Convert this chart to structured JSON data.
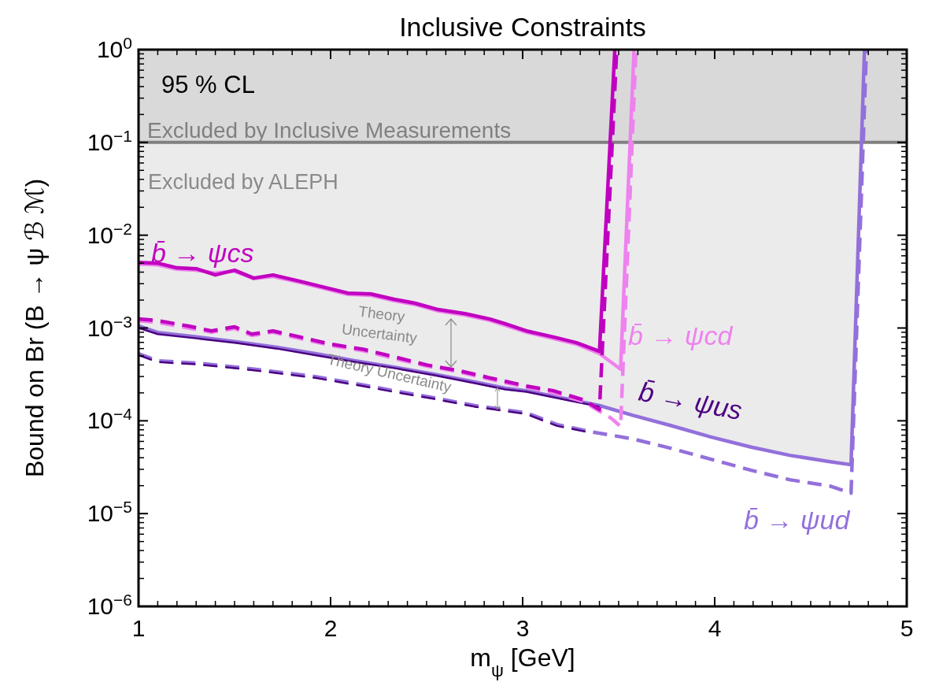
{
  "chart_data": {
    "type": "line",
    "title": "Inclusive Constraints",
    "xlabel": "m$_{ψ}$ [GeV]",
    "ylabel": "Bound on Br (B → ψ ℬ ℳ)",
    "log": "y",
    "xlim": [
      1,
      5
    ],
    "xticks": [
      1,
      2,
      3,
      4,
      5
    ],
    "ylim": [
      1e-06,
      1
    ],
    "yticks": [
      {
        "value": 1e-06,
        "label": "10$^{−6}$"
      },
      {
        "value": 1e-05,
        "label": "10$^{−5}$"
      },
      {
        "value": 0.0001,
        "label": "10$^{−4}$"
      },
      {
        "value": 0.001,
        "label": "10$^{−3}$"
      },
      {
        "value": 0.01,
        "label": "10$^{−2}$"
      },
      {
        "value": 0.1,
        "label": "10$^{−1}$"
      },
      {
        "value": 1,
        "label": "10$^{0}$"
      }
    ],
    "bands": [
      {
        "axis": "y",
        "from": 0.1,
        "to": 1,
        "color": "#d9d9d9"
      }
    ],
    "ref_lines": [
      {
        "axis": "y",
        "value": 0.1,
        "label": "Excluded by Inclusive Measurements",
        "color": "#808080"
      }
    ],
    "annotations": [
      "95 % CL",
      "Excluded by ALEPH",
      "Theory Uncertainty",
      "Theory Uncertainty"
    ],
    "series": [
      {
        "name": "b̄ → ψud",
        "color": "#9370db",
        "line_style": "solid",
        "x": [
          1,
          1.1,
          1.31,
          1.51,
          1.72,
          1.92,
          2.13,
          2.33,
          2.54,
          2.75,
          2.91,
          3.02,
          3.4,
          3.57,
          3.77,
          3.98,
          4.19,
          4.39,
          4.6,
          4.71,
          4.78
        ],
        "values": [
          0.00105,
          0.000896,
          0.0008,
          0.00071,
          0.00062,
          0.00053,
          0.000443,
          0.000379,
          0.000318,
          0.000262,
          0.000224,
          0.000211,
          0.000146,
          0.000115,
          8.9e-05,
          6.7e-05,
          5.2e-05,
          4.25e-05,
          3.63e-05,
          3.36e-05,
          1
        ]
      },
      {
        "color": "#9370db",
        "line_style": "dashed",
        "x": [
          1,
          1.1,
          1.31,
          1.51,
          1.72,
          1.92,
          2.13,
          2.33,
          2.54,
          2.75,
          3.02,
          3.18,
          3.36,
          3.57,
          3.77,
          3.98,
          4.19,
          4.39,
          4.6,
          4.71,
          4.79
        ],
        "values": [
          0.00053,
          0.000443,
          0.000418,
          0.000379,
          0.000337,
          0.0003,
          0.000252,
          0.000211,
          0.000177,
          0.000146,
          0.000122,
          9.1e-05,
          7.6e-05,
          6.4e-05,
          5.07e-05,
          3.86e-05,
          2.93e-05,
          2.32e-05,
          1.98e-05,
          1.66e-05,
          1
        ]
      },
      {
        "name": "b̄ → ψus",
        "color": "#4b0082",
        "line_style": "solid",
        "x": [
          1,
          1.1,
          1.31,
          1.51,
          1.72,
          1.92,
          2.13,
          2.33,
          2.54,
          2.75,
          2.91,
          3.02,
          3.4
        ],
        "values": [
          0.001,
          0.00086,
          0.00077,
          0.00069,
          0.0006,
          0.00051,
          0.00043,
          0.00037,
          0.00031,
          0.000255,
          0.000218,
          0.000205,
          0.000142
        ]
      },
      {
        "color": "#4b0082",
        "line_style": "dashed",
        "x": [
          1,
          1.1,
          1.31,
          1.51,
          1.72,
          1.92,
          2.13,
          2.33,
          2.54,
          2.75,
          3.02,
          3.18,
          3.36
        ],
        "values": [
          0.00051,
          0.00043,
          0.000405,
          0.000368,
          0.000327,
          0.00029,
          0.000244,
          0.000205,
          0.000172,
          0.000142,
          0.000118,
          8.8e-05,
          7.4e-05
        ]
      },
      {
        "name": "b̄ → ψcd",
        "color": "#ee82ee",
        "line_style": "solid",
        "x": [
          1,
          1.1,
          1.2,
          1.3,
          1.4,
          1.5,
          1.6,
          1.7,
          1.84,
          2.09,
          2.21,
          2.33,
          2.44,
          2.56,
          2.7,
          2.83,
          2.91,
          3.02,
          3.16,
          3.28,
          3.4,
          3.51,
          3.58
        ],
        "values": [
          0.0049,
          0.0048,
          0.0043,
          0.0042,
          0.0039,
          0.0041,
          0.0034,
          0.0036,
          0.0031,
          0.0023,
          0.00225,
          0.00197,
          0.00179,
          0.00153,
          0.00138,
          0.00121,
          0.00107,
          0.0009,
          0.00077,
          0.00067,
          0.00053,
          0.00036,
          1
        ]
      },
      {
        "color": "#ee82ee",
        "line_style": "dashed",
        "x": [
          1,
          1.1,
          1.26,
          1.38,
          1.5,
          1.59,
          1.7,
          1.84,
          2.0,
          2.17,
          2.33,
          2.5,
          2.66,
          2.83,
          3.02,
          3.16,
          3.32,
          3.46,
          3.51,
          3.59
        ],
        "values": [
          0.0012,
          0.00115,
          0.001,
          0.0009,
          0.00099,
          0.00083,
          0.0009,
          0.00077,
          0.00065,
          0.00057,
          0.00047,
          0.00039,
          0.00034,
          0.00028,
          0.00023,
          0.0002,
          0.00016,
          0.000107,
          8.7e-05,
          1
        ]
      },
      {
        "name": "b̄ → ψcs",
        "color": "#c000c0",
        "line_style": "solid",
        "x": [
          1,
          1.1,
          1.2,
          1.3,
          1.4,
          1.5,
          1.6,
          1.7,
          1.84,
          2.09,
          2.21,
          2.33,
          2.44,
          2.56,
          2.7,
          2.83,
          2.91,
          3.02,
          3.16,
          3.28,
          3.4,
          3.48
        ],
        "values": [
          0.0051,
          0.005,
          0.00445,
          0.00436,
          0.00373,
          0.0042,
          0.00345,
          0.00373,
          0.00319,
          0.00238,
          0.00233,
          0.00204,
          0.00185,
          0.00158,
          0.00143,
          0.00125,
          0.00111,
          0.00093,
          0.0008,
          0.000695,
          0.00056,
          1
        ]
      },
      {
        "color": "#c000c0",
        "line_style": "dashed",
        "x": [
          1,
          1.1,
          1.26,
          1.38,
          1.5,
          1.59,
          1.7,
          1.84,
          2.0,
          2.17,
          2.33,
          2.5,
          2.66,
          2.83,
          3.02,
          3.16,
          3.32,
          3.4,
          3.49
        ],
        "values": [
          0.00125,
          0.0012,
          0.00105,
          0.00093,
          0.00103,
          0.00086,
          0.00093,
          0.0008,
          0.00067,
          0.00059,
          0.00049,
          0.0004,
          0.00035,
          0.00029,
          0.000237,
          0.000211,
          0.000167,
          0.000132,
          1
        ]
      }
    ]
  }
}
